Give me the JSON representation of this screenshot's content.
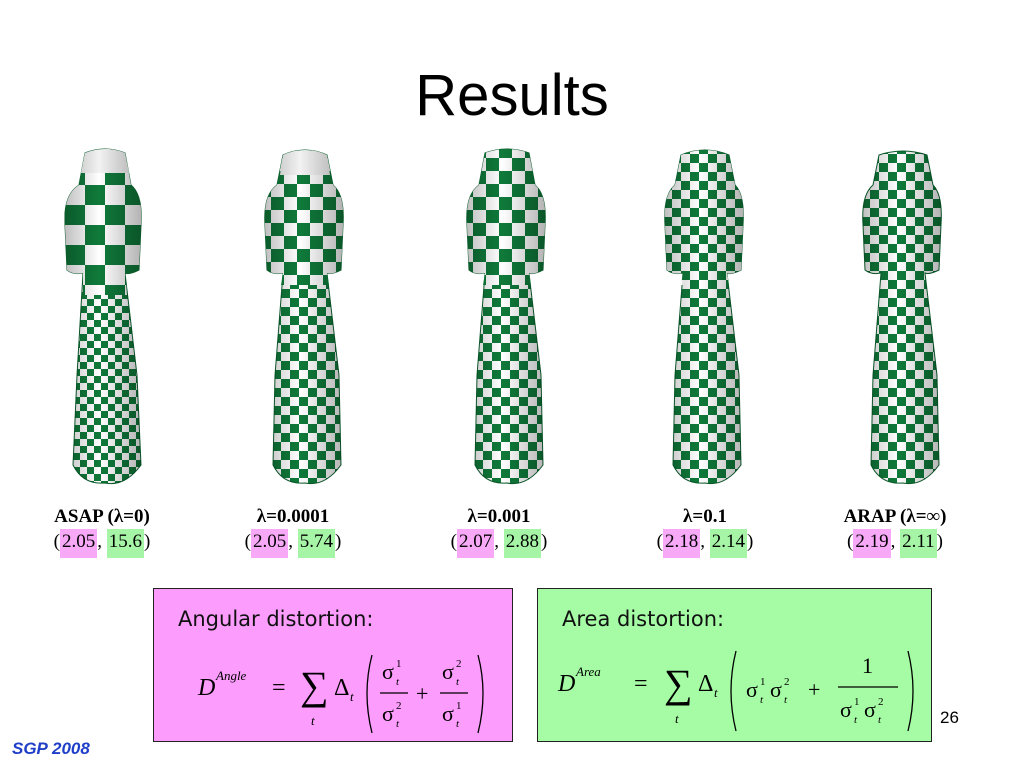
{
  "slide": {
    "title": "Results",
    "page_number": "26",
    "footer": "SGP 2008"
  },
  "figures": [
    {
      "label": "ASAP (λ=0)",
      "angle": "2.05",
      "area": "15.6"
    },
    {
      "label": "λ=0.0001",
      "angle": "2.05",
      "area": "5.74"
    },
    {
      "label": "λ=0.001",
      "angle": "2.07",
      "area": "2.88"
    },
    {
      "label": "λ=0.1",
      "angle": "2.18",
      "area": "2.14"
    },
    {
      "label": "ARAP (λ=∞)",
      "angle": "2.19",
      "area": "2.11"
    }
  ],
  "punct": {
    "open": "(",
    "comma": ", ",
    "close": ")"
  },
  "boxes": {
    "angular": {
      "title": "Angular distortion:",
      "symbol": "D",
      "superscript": "Angle",
      "sum_index": "t",
      "delta": "Δ",
      "sigma": "σ",
      "one": "1",
      "two": "2",
      "plus": "+",
      "equals": "="
    },
    "area": {
      "title": "Area distortion:",
      "symbol": "D",
      "superscript": "Area",
      "sum_index": "t",
      "delta": "Δ",
      "sigma": "σ",
      "one": "1",
      "two": "2",
      "plus": "+",
      "equals": "="
    }
  },
  "colors": {
    "checker_green": "#0f7a3a",
    "checker_white": "#ffffff",
    "angle_highlight": "#f7a8f7",
    "area_highlight": "#a6f5a6",
    "angular_box": "#fc9cfc",
    "area_box": "#a5fca5",
    "footer_text": "#1f3fc8"
  }
}
